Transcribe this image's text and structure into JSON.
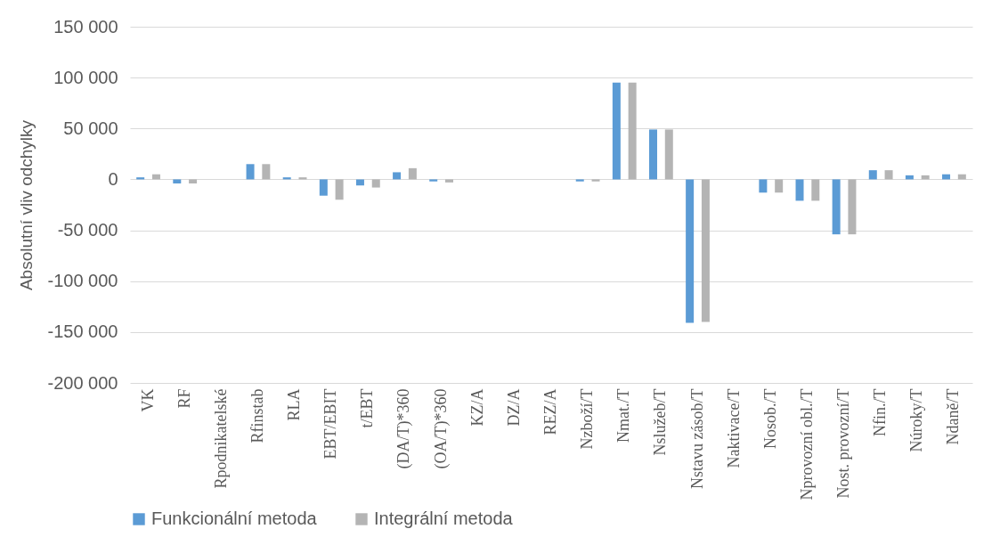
{
  "chart_data": {
    "type": "bar",
    "ylabel": "Absolutní vliv odchylky",
    "categories": [
      "VK",
      "RF",
      "Rpodnikatelské",
      "Rfinstab",
      "RLA",
      "EBT/EBIT",
      "t/EBT",
      "(DA/T)*360",
      "(OA/T)*360",
      "KZ/A",
      "DZ/A",
      "REZ/A",
      "Nzboží/T",
      "Nmat./T",
      "Nslužeb/T",
      "Nstavu zásob/T",
      "Naktivace/T",
      "Nosob./T",
      "Nprovozní obl./T",
      "Nost. provozní/T",
      "Nfin./T",
      "Núroky/T",
      "Ndaně/T"
    ],
    "series": [
      {
        "name": "Funkcionální metoda",
        "color": "#5b9bd5",
        "values": [
          2000,
          -4000,
          0,
          15000,
          2000,
          -16000,
          -6000,
          7000,
          -2000,
          0,
          0,
          0,
          -2000,
          95000,
          49000,
          -141000,
          0,
          -13000,
          -21000,
          -54000,
          9000,
          4000,
          5000
        ]
      },
      {
        "name": "Integrální metoda",
        "color": "#b4b4b4",
        "values": [
          5000,
          -4000,
          0,
          15000,
          2000,
          -20000,
          -8000,
          11000,
          -3000,
          0,
          0,
          0,
          -2000,
          95000,
          49000,
          -140000,
          0,
          -13000,
          -21000,
          -54000,
          9000,
          4000,
          5000
        ]
      }
    ],
    "ylim": [
      -200000,
      150000
    ],
    "yticks": [
      {
        "value": -200000,
        "label": "-200 000"
      },
      {
        "value": -150000,
        "label": "-150 000"
      },
      {
        "value": -100000,
        "label": "-100 000"
      },
      {
        "value": -50000,
        "label": "-50 000"
      },
      {
        "value": 0,
        "label": "0"
      },
      {
        "value": 50000,
        "label": "50 000"
      },
      {
        "value": 100000,
        "label": "100 000"
      },
      {
        "value": 150000,
        "label": "150 000"
      }
    ],
    "grid": "y",
    "legend": "bottom"
  }
}
